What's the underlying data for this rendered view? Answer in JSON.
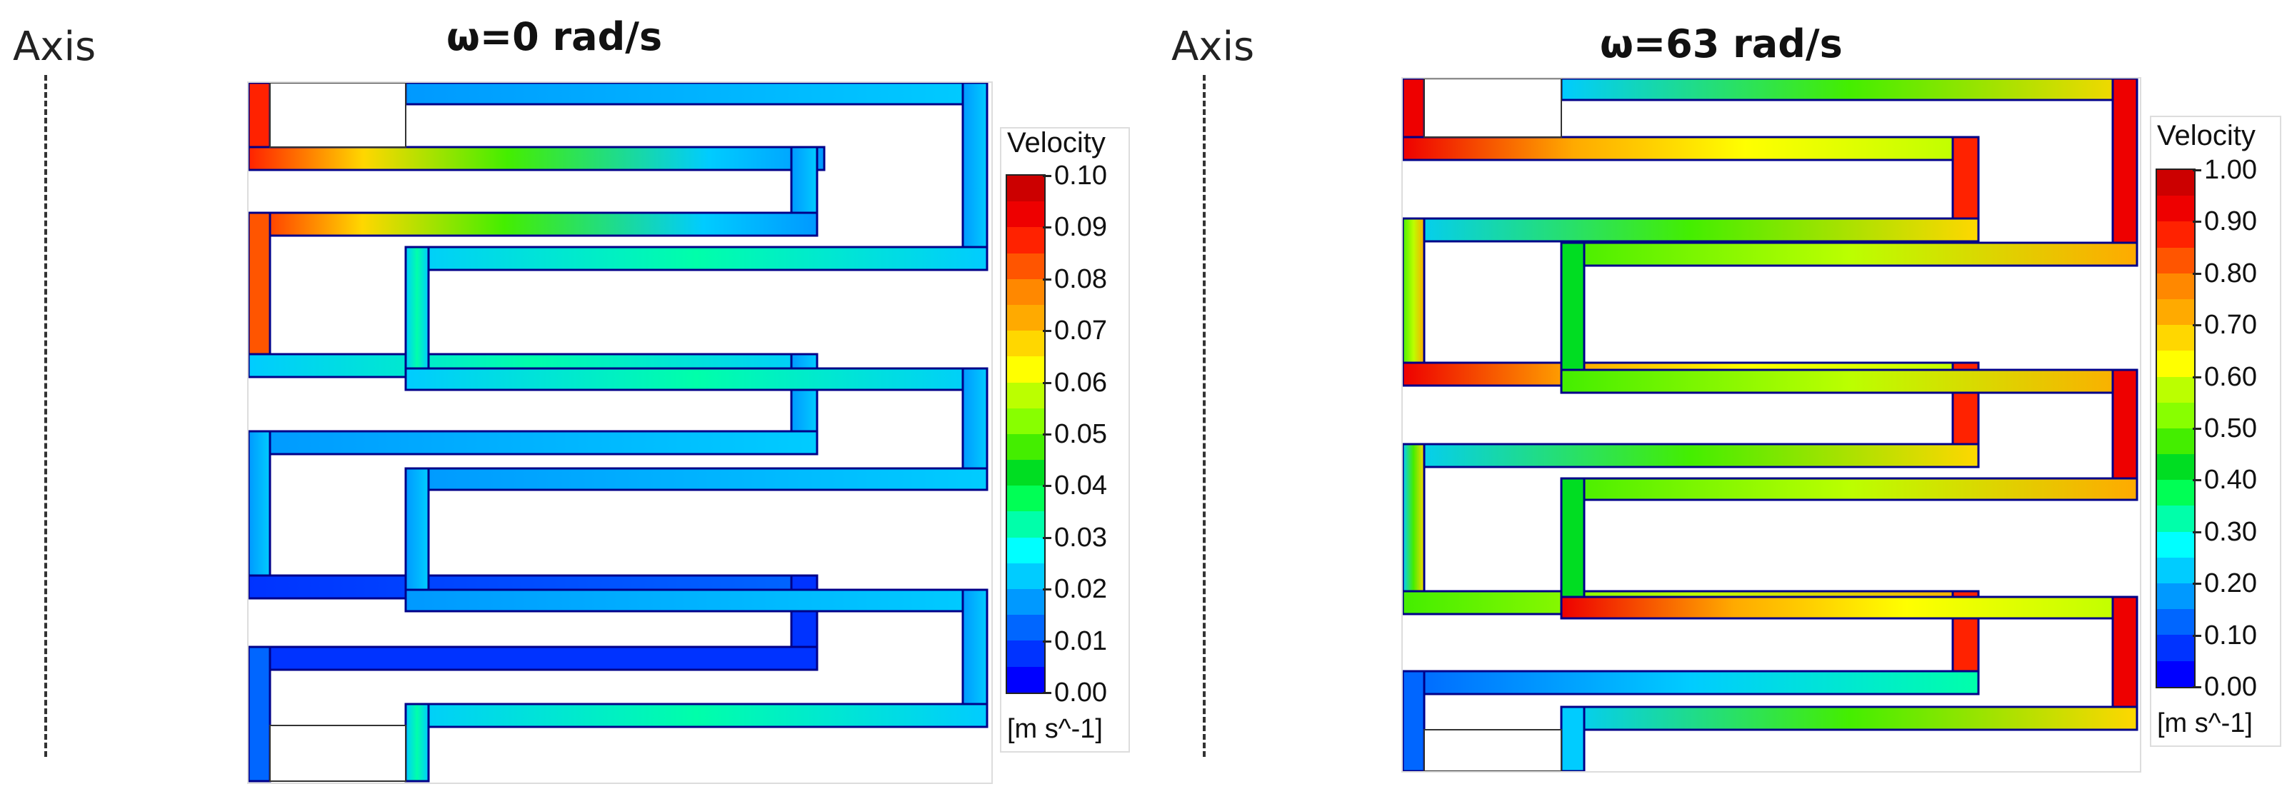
{
  "axis_label": "Axis",
  "colors": [
    "#0000ff",
    "#0033ff",
    "#0066ff",
    "#0099ff",
    "#00ccff",
    "#00ffff",
    "#00ffaa",
    "#00ff55",
    "#00dd22",
    "#44ee00",
    "#88ff00",
    "#bbff00",
    "#ffff00",
    "#ffd700",
    "#ffaa00",
    "#ff8800",
    "#ff5500",
    "#ff2200",
    "#ee0000",
    "#cc0000"
  ],
  "panels": [
    {
      "title": "ω=0 rad/s",
      "legend": {
        "title": "Velocity",
        "units": "[m s^-1]",
        "ticks": [
          "0.10",
          "0.09",
          "0.08",
          "0.07",
          "0.06",
          "0.05",
          "0.04",
          "0.03",
          "0.02",
          "0.01",
          "0.00"
        ]
      }
    },
    {
      "title": "ω=63 rad/s",
      "legend": {
        "title": "Velocity",
        "units": "[m s^-1]",
        "ticks": [
          "1.00",
          "0.90",
          "0.80",
          "0.70",
          "0.60",
          "0.50",
          "0.40",
          "0.30",
          "0.20",
          "0.10",
          "0.00"
        ]
      }
    }
  ]
}
